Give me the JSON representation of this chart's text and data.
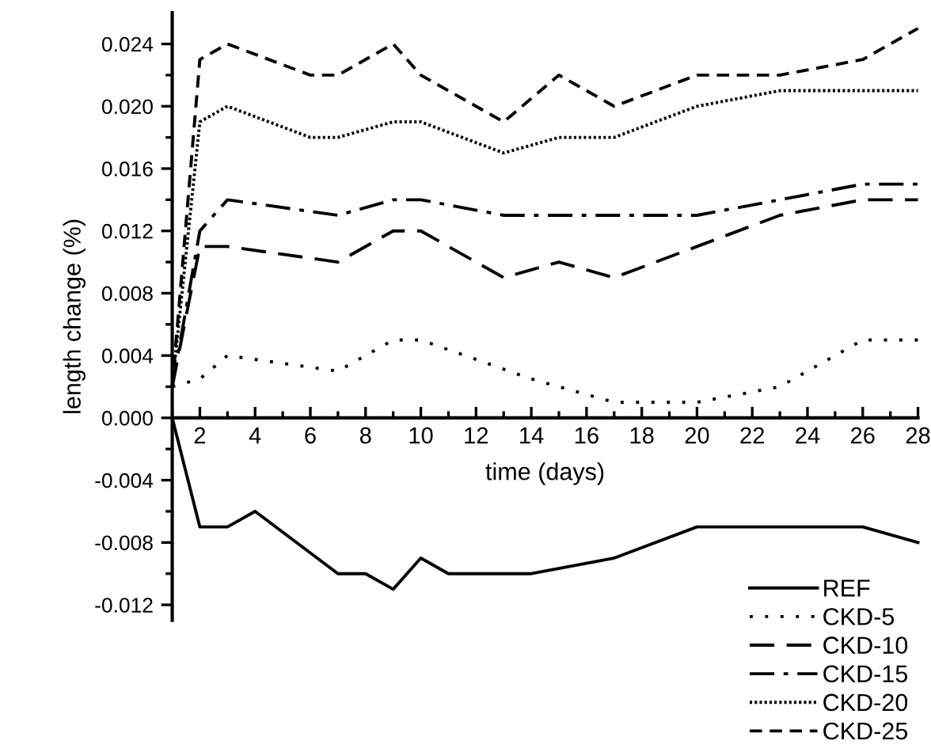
{
  "chart_data": {
    "type": "line",
    "xlabel": "time (days)",
    "ylabel": "length change (%)",
    "xlim": [
      1,
      28
    ],
    "ylim": [
      -0.013,
      0.026
    ],
    "xticks": [
      {
        "value": 1,
        "label": null
      },
      2,
      {
        "value": 3,
        "label": null
      },
      4,
      {
        "value": 5,
        "label": null
      },
      6,
      {
        "value": 7,
        "label": null
      },
      8,
      {
        "value": 9,
        "label": null
      },
      10,
      {
        "value": 11,
        "label": null
      },
      12,
      {
        "value": 13,
        "label": null
      },
      14,
      {
        "value": 15,
        "label": null
      },
      16,
      {
        "value": 17,
        "label": null
      },
      18,
      {
        "value": 19,
        "label": null
      },
      20,
      {
        "value": 21,
        "label": null
      },
      22,
      {
        "value": 23,
        "label": null
      },
      24,
      {
        "value": 25,
        "label": null
      },
      26,
      {
        "value": 27,
        "label": null
      },
      28
    ],
    "yticks": [
      {
        "value": -0.012,
        "label": "-0.012"
      },
      {
        "value": -0.01,
        "label": null
      },
      {
        "value": -0.008,
        "label": "-0.008"
      },
      {
        "value": -0.006,
        "label": null
      },
      {
        "value": -0.004,
        "label": "-0.004"
      },
      {
        "value": -0.002,
        "label": null
      },
      {
        "value": 0,
        "label": "0.000"
      },
      {
        "value": 0.002,
        "label": null
      },
      {
        "value": 0.004,
        "label": "0.004"
      },
      {
        "value": 0.006,
        "label": null
      },
      {
        "value": 0.008,
        "label": "0.008"
      },
      {
        "value": 0.01,
        "label": null
      },
      {
        "value": 0.012,
        "label": "0.012"
      },
      {
        "value": 0.014,
        "label": null
      },
      {
        "value": 0.016,
        "label": "0.016"
      },
      {
        "value": 0.018,
        "label": null
      },
      {
        "value": 0.02,
        "label": "0.020"
      },
      {
        "value": 0.022,
        "label": null
      },
      {
        "value": 0.024,
        "label": "0.024"
      }
    ],
    "grid": false,
    "legend": "bottom right",
    "marker": "none",
    "series": [
      {
        "name": "REF",
        "color": "#000000",
        "line_style": "solid",
        "x": [
          1,
          2,
          3,
          4,
          7,
          8,
          9,
          10,
          11,
          14,
          17,
          20,
          26,
          28
        ],
        "values": [
          0,
          -0.007,
          -0.007,
          -0.006,
          -0.01,
          -0.01,
          -0.011,
          -0.009,
          -0.01,
          -0.01,
          -0.009,
          -0.007,
          -0.007,
          -0.008
        ]
      },
      {
        "name": "CKD-5",
        "color": "#000000",
        "line_style": "dotted",
        "x": [
          1,
          2,
          3,
          7,
          9,
          10,
          14,
          17,
          20,
          23,
          26,
          28
        ],
        "values": [
          0.002,
          0.0025,
          0.004,
          0.003,
          0.005,
          0.005,
          0.0025,
          0.001,
          0.001,
          0.002,
          0.005,
          0.005
        ]
      },
      {
        "name": "CKD-10",
        "color": "#000000",
        "line_style": "dashed",
        "x": [
          1,
          2,
          3,
          7,
          9,
          10,
          13,
          15,
          17,
          20,
          23,
          26,
          28
        ],
        "values": [
          0.002,
          0.011,
          0.011,
          0.01,
          0.012,
          0.012,
          0.009,
          0.01,
          0.009,
          0.011,
          0.013,
          0.014,
          0.014
        ]
      },
      {
        "name": "CKD-15",
        "color": "#000000",
        "line_style": "dashdot",
        "x": [
          1,
          2,
          3,
          7,
          9,
          10,
          13,
          20,
          26,
          28
        ],
        "values": [
          0.002,
          0.012,
          0.014,
          0.013,
          0.014,
          0.014,
          0.013,
          0.013,
          0.015,
          0.015
        ]
      },
      {
        "name": "CKD-20",
        "color": "#000000",
        "line_style": "densely dotted",
        "x": [
          1,
          2,
          3,
          6,
          7,
          9,
          10,
          13,
          15,
          17,
          20,
          23,
          26,
          28
        ],
        "values": [
          0.002,
          0.019,
          0.02,
          0.018,
          0.018,
          0.019,
          0.019,
          0.017,
          0.018,
          0.018,
          0.02,
          0.021,
          0.021,
          0.021
        ]
      },
      {
        "name": "CKD-25",
        "color": "#000000",
        "line_style": "short dashed",
        "x": [
          1,
          2,
          3,
          6,
          7,
          9,
          10,
          13,
          15,
          17,
          20,
          23,
          26,
          28
        ],
        "values": [
          0.002,
          0.023,
          0.024,
          0.022,
          0.022,
          0.024,
          0.022,
          0.019,
          0.022,
          0.02,
          0.022,
          0.022,
          0.023,
          0.025
        ]
      }
    ]
  }
}
